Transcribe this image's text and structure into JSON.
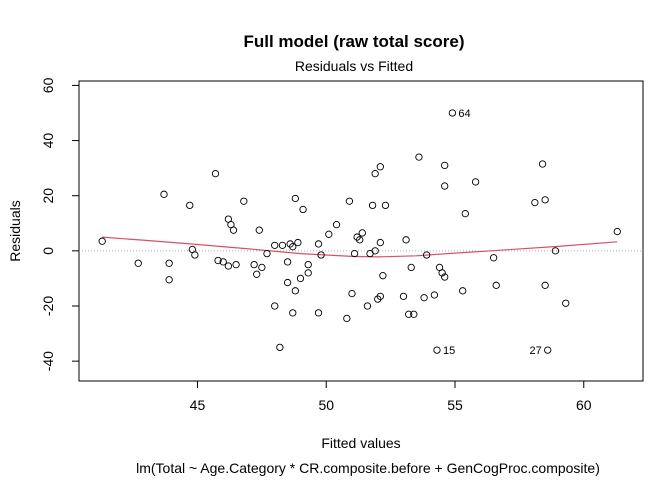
{
  "chart_data": {
    "type": "scatter",
    "title": "Full model (raw total score)",
    "subtitle": "Residuals vs Fitted",
    "xlabel": "Fitted values",
    "caption": "lm(Total ~ Age.Category * CR.composite.before + GenCogProc.composite)",
    "ylabel": "Residuals",
    "xlim": [
      40.4,
      62.3
    ],
    "ylim": [
      -47.2,
      61.6
    ],
    "xticks": [
      45,
      50,
      55,
      60
    ],
    "yticks": [
      -40,
      -20,
      0,
      20,
      40,
      60
    ],
    "xtick_labels": [
      "45",
      "50",
      "55",
      "60"
    ],
    "ytick_labels": [
      "-40",
      "-20",
      "0",
      "20",
      "40",
      "60"
    ],
    "grid": false,
    "zero_line": {
      "y": 0,
      "style": "dotted",
      "color": "#b0b0b0"
    },
    "point_style": {
      "shape": "open-circle",
      "color": "#000000"
    },
    "smooth_color": "#d94f6a",
    "points": [
      {
        "x": 41.3,
        "y": 3.5
      },
      {
        "x": 42.7,
        "y": -4.5
      },
      {
        "x": 43.7,
        "y": 20.5
      },
      {
        "x": 43.9,
        "y": -4.5
      },
      {
        "x": 43.9,
        "y": -10.5
      },
      {
        "x": 44.7,
        "y": 16.5
      },
      {
        "x": 44.8,
        "y": 0.5
      },
      {
        "x": 44.9,
        "y": -1.5
      },
      {
        "x": 45.7,
        "y": 28.0
      },
      {
        "x": 45.8,
        "y": -3.5
      },
      {
        "x": 46.0,
        "y": -4.0
      },
      {
        "x": 46.2,
        "y": -5.5
      },
      {
        "x": 46.2,
        "y": 11.5
      },
      {
        "x": 46.3,
        "y": 9.5
      },
      {
        "x": 46.4,
        "y": 7.5
      },
      {
        "x": 46.5,
        "y": -5.0
      },
      {
        "x": 46.8,
        "y": 18.0
      },
      {
        "x": 47.2,
        "y": -5.0
      },
      {
        "x": 47.3,
        "y": -8.5
      },
      {
        "x": 47.4,
        "y": 7.5
      },
      {
        "x": 47.5,
        "y": -6.0
      },
      {
        "x": 47.7,
        "y": -1.0
      },
      {
        "x": 48.0,
        "y": -20.0
      },
      {
        "x": 48.0,
        "y": 2.0
      },
      {
        "x": 48.2,
        "y": -35.0
      },
      {
        "x": 48.3,
        "y": 2.0
      },
      {
        "x": 48.5,
        "y": -11.5
      },
      {
        "x": 48.5,
        "y": -4.0
      },
      {
        "x": 48.6,
        "y": 2.5
      },
      {
        "x": 48.7,
        "y": 1.5
      },
      {
        "x": 48.7,
        "y": -22.5
      },
      {
        "x": 48.8,
        "y": 19.0
      },
      {
        "x": 48.8,
        "y": -14.5
      },
      {
        "x": 48.9,
        "y": 3.0
      },
      {
        "x": 49.0,
        "y": -10.0
      },
      {
        "x": 49.1,
        "y": 15.0
      },
      {
        "x": 49.3,
        "y": -8.0
      },
      {
        "x": 49.3,
        "y": -5.0
      },
      {
        "x": 49.7,
        "y": 2.5
      },
      {
        "x": 49.7,
        "y": -22.5
      },
      {
        "x": 49.8,
        "y": -1.5
      },
      {
        "x": 50.1,
        "y": 6.0
      },
      {
        "x": 50.4,
        "y": 9.5
      },
      {
        "x": 50.8,
        "y": -24.5
      },
      {
        "x": 50.9,
        "y": 18.0
      },
      {
        "x": 51.0,
        "y": -15.5
      },
      {
        "x": 51.1,
        "y": -1.0
      },
      {
        "x": 51.2,
        "y": 5.0
      },
      {
        "x": 51.3,
        "y": 4.0
      },
      {
        "x": 51.4,
        "y": 6.5
      },
      {
        "x": 51.6,
        "y": -20.0
      },
      {
        "x": 51.7,
        "y": -1.0
      },
      {
        "x": 51.8,
        "y": 16.5
      },
      {
        "x": 51.9,
        "y": 0.0
      },
      {
        "x": 51.9,
        "y": 28.0
      },
      {
        "x": 52.0,
        "y": -17.5
      },
      {
        "x": 52.1,
        "y": -16.5
      },
      {
        "x": 52.1,
        "y": 3.0
      },
      {
        "x": 52.1,
        "y": 30.5
      },
      {
        "x": 52.2,
        "y": -9.0
      },
      {
        "x": 52.3,
        "y": 16.5
      },
      {
        "x": 53.0,
        "y": -16.5
      },
      {
        "x": 53.1,
        "y": 4.0
      },
      {
        "x": 53.2,
        "y": -23.0
      },
      {
        "x": 53.4,
        "y": -23.0
      },
      {
        "x": 53.3,
        "y": -6.0
      },
      {
        "x": 53.6,
        "y": 34.0
      },
      {
        "x": 53.8,
        "y": -17.0
      },
      {
        "x": 53.9,
        "y": -1.5
      },
      {
        "x": 54.2,
        "y": -16.0
      },
      {
        "x": 54.3,
        "y": -36.0,
        "label": "15"
      },
      {
        "x": 54.4,
        "y": -6.0
      },
      {
        "x": 54.5,
        "y": -8.0
      },
      {
        "x": 54.6,
        "y": -9.5
      },
      {
        "x": 54.6,
        "y": 23.5
      },
      {
        "x": 54.6,
        "y": 31.0
      },
      {
        "x": 54.9,
        "y": 50.0,
        "label": "64"
      },
      {
        "x": 55.3,
        "y": -14.5
      },
      {
        "x": 55.4,
        "y": 13.5
      },
      {
        "x": 55.8,
        "y": 25.0
      },
      {
        "x": 56.5,
        "y": -2.5
      },
      {
        "x": 56.6,
        "y": -12.5
      },
      {
        "x": 58.1,
        "y": 17.5
      },
      {
        "x": 58.4,
        "y": 31.5
      },
      {
        "x": 58.5,
        "y": 18.5
      },
      {
        "x": 58.5,
        "y": -12.5
      },
      {
        "x": 58.6,
        "y": -36.0,
        "label": "27"
      },
      {
        "x": 58.9,
        "y": 0.0
      },
      {
        "x": 59.3,
        "y": -19.0
      },
      {
        "x": 61.3,
        "y": 7.0
      }
    ],
    "smooth_line": [
      {
        "x": 41.3,
        "y": 5.0
      },
      {
        "x": 43.0,
        "y": 3.8
      },
      {
        "x": 45.0,
        "y": 2.3
      },
      {
        "x": 47.0,
        "y": 0.7
      },
      {
        "x": 49.0,
        "y": -1.0
      },
      {
        "x": 51.0,
        "y": -2.0
      },
      {
        "x": 52.0,
        "y": -2.2
      },
      {
        "x": 53.5,
        "y": -1.8
      },
      {
        "x": 55.0,
        "y": -0.8
      },
      {
        "x": 57.0,
        "y": 0.4
      },
      {
        "x": 59.0,
        "y": 1.6
      },
      {
        "x": 61.3,
        "y": 3.3
      }
    ]
  }
}
